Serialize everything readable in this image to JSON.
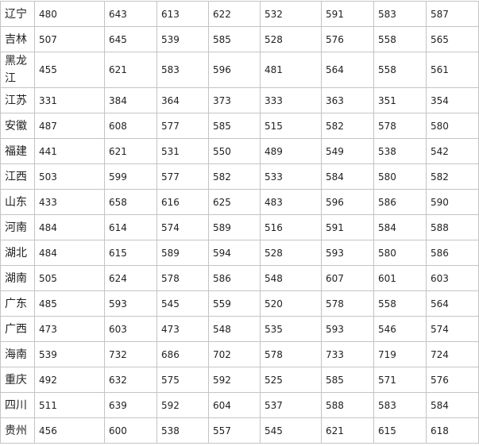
{
  "table": {
    "rows": [
      {
        "province": "辽宁",
        "values": [
          "480",
          "643",
          "613",
          "622",
          "532",
          "591",
          "583",
          "587"
        ]
      },
      {
        "province": "吉林",
        "values": [
          "507",
          "645",
          "539",
          "585",
          "528",
          "576",
          "558",
          "565"
        ]
      },
      {
        "province": "黑龙江",
        "values": [
          "455",
          "621",
          "583",
          "596",
          "481",
          "564",
          "558",
          "561"
        ]
      },
      {
        "province": "江苏",
        "values": [
          "331",
          "384",
          "364",
          "373",
          "333",
          "363",
          "351",
          "354"
        ]
      },
      {
        "province": "安徽",
        "values": [
          "487",
          "608",
          "577",
          "585",
          "515",
          "582",
          "578",
          "580"
        ]
      },
      {
        "province": "福建",
        "values": [
          "441",
          "621",
          "531",
          "550",
          "489",
          "549",
          "538",
          "542"
        ]
      },
      {
        "province": "江西",
        "values": [
          "503",
          "599",
          "577",
          "582",
          "533",
          "584",
          "580",
          "582"
        ]
      },
      {
        "province": "山东",
        "values": [
          "433",
          "658",
          "616",
          "625",
          "483",
          "596",
          "586",
          "590"
        ]
      },
      {
        "province": "河南",
        "values": [
          "484",
          "614",
          "574",
          "589",
          "516",
          "591",
          "584",
          "588"
        ]
      },
      {
        "province": "湖北",
        "values": [
          "484",
          "615",
          "589",
          "594",
          "528",
          "593",
          "580",
          "586"
        ]
      },
      {
        "province": "湖南",
        "values": [
          "505",
          "624",
          "578",
          "586",
          "548",
          "607",
          "601",
          "603"
        ]
      },
      {
        "province": "广东",
        "values": [
          "485",
          "593",
          "545",
          "559",
          "520",
          "578",
          "558",
          "564"
        ]
      },
      {
        "province": "广西",
        "values": [
          "473",
          "603",
          "473",
          "548",
          "535",
          "593",
          "546",
          "574"
        ]
      },
      {
        "province": "海南",
        "values": [
          "539",
          "732",
          "686",
          "702",
          "578",
          "733",
          "719",
          "724"
        ]
      },
      {
        "province": "重庆",
        "values": [
          "492",
          "632",
          "575",
          "592",
          "525",
          "585",
          "571",
          "576"
        ]
      },
      {
        "province": "四川",
        "values": [
          "511",
          "639",
          "592",
          "604",
          "537",
          "588",
          "583",
          "584"
        ]
      },
      {
        "province": "贵州",
        "values": [
          "456",
          "600",
          "538",
          "557",
          "545",
          "621",
          "615",
          "618"
        ]
      }
    ]
  }
}
